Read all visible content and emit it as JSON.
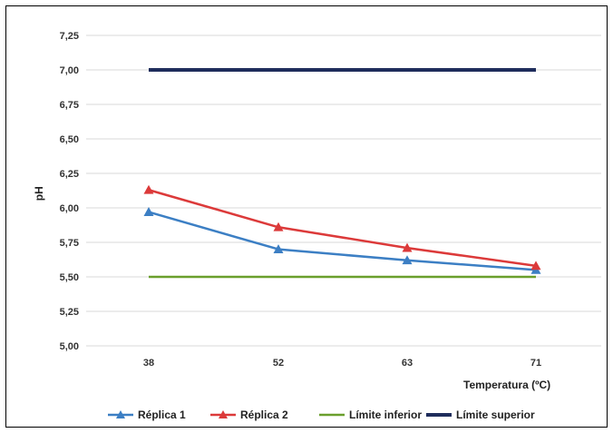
{
  "chart_data": {
    "type": "line",
    "title": "",
    "xlabel": "Temperatura (ºC)",
    "ylabel": "pH",
    "categories": [
      "38",
      "52",
      "63",
      "71"
    ],
    "yticks": [
      "5,00",
      "5,25",
      "5,50",
      "5,75",
      "6,00",
      "6,25",
      "6,50",
      "6,75",
      "7,00",
      "7,25"
    ],
    "ylim": [
      5.0,
      7.25
    ],
    "grid": true,
    "legend_position": "bottom",
    "series": [
      {
        "name": "Réplica 1",
        "color": "#3c7fc4",
        "marker": "triangle",
        "values": [
          5.97,
          5.7,
          5.62,
          5.55
        ]
      },
      {
        "name": "Réplica 2",
        "color": "#dc3a3a",
        "marker": "triangle",
        "values": [
          6.13,
          5.86,
          5.71,
          5.58
        ]
      },
      {
        "name": "Límite inferior",
        "color": "#6a9f2d",
        "marker": "none",
        "values": [
          5.5,
          5.5,
          5.5,
          5.5
        ]
      },
      {
        "name": "Límite superior",
        "color": "#1f2d5c",
        "marker": "none",
        "values": [
          7.0,
          7.0,
          7.0,
          7.0
        ]
      }
    ]
  }
}
